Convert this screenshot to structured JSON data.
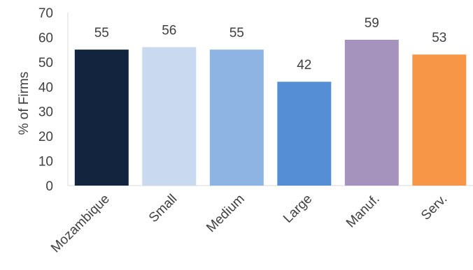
{
  "chart_data": {
    "type": "bar",
    "categories": [
      "Mozambique",
      "Small",
      "Medium",
      "Large",
      "Manuf.",
      "Serv."
    ],
    "values": [
      55,
      56,
      55,
      42,
      59,
      53
    ],
    "data_labels": [
      "55",
      "56",
      "55",
      "42",
      "59",
      "53"
    ],
    "colors": [
      "#13243F",
      "#C8D9F0",
      "#8EB4E3",
      "#558ED5",
      "#A593BE",
      "#F79646"
    ],
    "ylabel": "% of Firms",
    "xlabel": "",
    "ylim": [
      0,
      70
    ],
    "yticks": [
      0,
      10,
      20,
      30,
      40,
      50,
      60,
      70
    ],
    "grid": false,
    "legend": "none"
  }
}
